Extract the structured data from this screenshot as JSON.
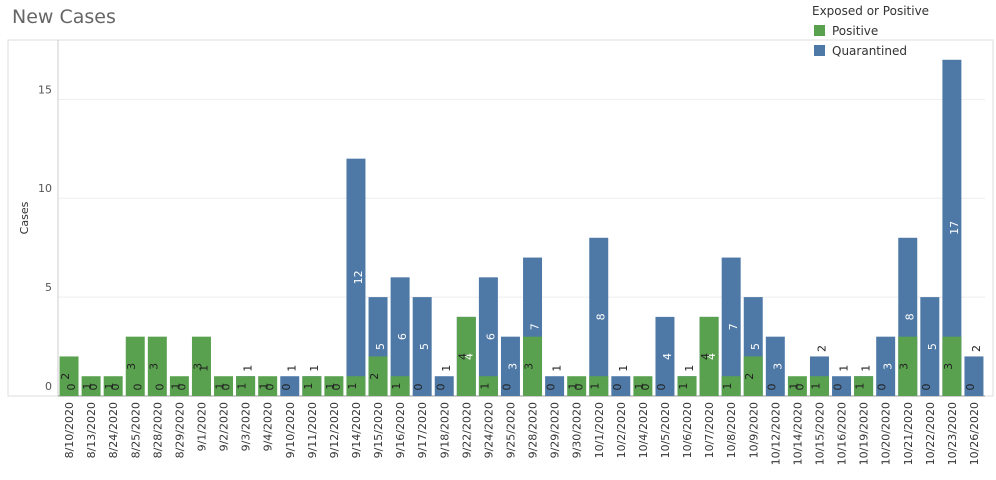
{
  "chart_data": {
    "type": "bar",
    "title": "New Cases",
    "y_label": "Cases",
    "legend_title": "Exposed or Positive",
    "legend_position": "top-right",
    "overlap": true,
    "grid": true,
    "categories": [
      "8/10/2020",
      "8/13/2020",
      "8/24/2020",
      "8/25/2020",
      "8/28/2020",
      "8/29/2020",
      "9/1/2020",
      "9/2/2020",
      "9/3/2020",
      "9/4/2020",
      "9/10/2020",
      "9/11/2020",
      "9/12/2020",
      "9/14/2020",
      "9/15/2020",
      "9/16/2020",
      "9/17/2020",
      "9/18/2020",
      "9/22/2020",
      "9/24/2020",
      "9/25/2020",
      "9/28/2020",
      "9/29/2020",
      "9/30/2020",
      "10/1/2020",
      "10/2/2020",
      "10/4/2020",
      "10/5/2020",
      "10/6/2020",
      "10/7/2020",
      "10/8/2020",
      "10/9/2020",
      "10/12/2020",
      "10/14/2020",
      "10/15/2020",
      "10/16/2020",
      "10/19/2020",
      "10/20/2020",
      "10/21/2020",
      "10/22/2020",
      "10/23/2020",
      "10/26/2020"
    ],
    "series": [
      {
        "name": "Quarantined",
        "color": "#4e79a7",
        "values": [
          0,
          0,
          0,
          0,
          0,
          0,
          1,
          0,
          1,
          0,
          1,
          1,
          0,
          12,
          5,
          6,
          5,
          1,
          4,
          6,
          3,
          7,
          1,
          0,
          8,
          1,
          0,
          4,
          1,
          4,
          7,
          5,
          3,
          0,
          2,
          1,
          1,
          3,
          8,
          5,
          17,
          2
        ]
      },
      {
        "name": "Positive",
        "color": "#59a14f",
        "values": [
          2,
          1,
          1,
          3,
          3,
          1,
          3,
          1,
          1,
          1,
          0,
          1,
          1,
          1,
          2,
          1,
          0,
          0,
          4,
          1,
          0,
          3,
          0,
          1,
          1,
          0,
          1,
          0,
          1,
          4,
          1,
          2,
          0,
          1,
          1,
          0,
          1,
          0,
          3,
          0,
          3,
          0
        ]
      }
    ],
    "ylim": [
      0,
      18
    ],
    "yticks": [
      0,
      5,
      10,
      15
    ]
  }
}
